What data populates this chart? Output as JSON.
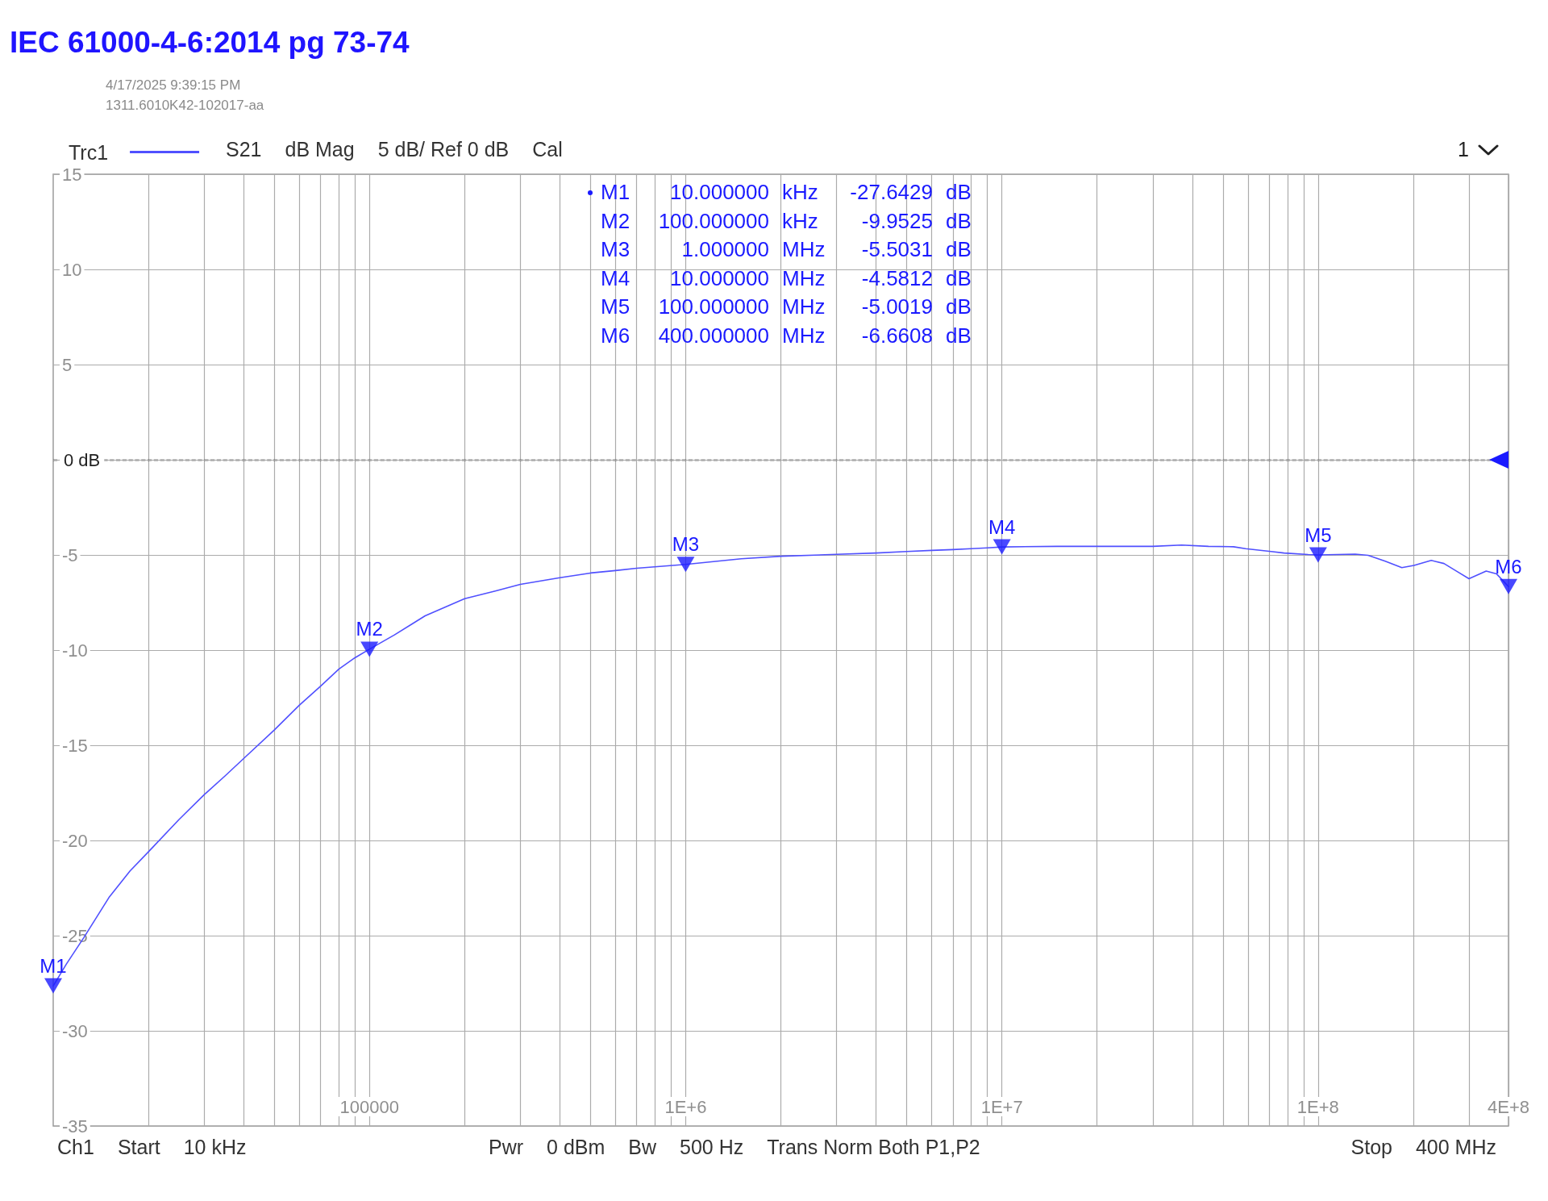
{
  "chart_data": {
    "type": "line",
    "title": "IEC 61000-4-6:2014 pg 73-74",
    "subtitle": "S21   dB Mag   5 dB/ Ref 0 dB   Cal",
    "x": [
      10000,
      11000,
      12500,
      15000,
      17500,
      20000,
      25000,
      30000,
      35000,
      40000,
      50000,
      60000,
      70000,
      80000,
      90000,
      100000,
      120000,
      150000,
      200000,
      250000,
      300000,
      400000,
      500000,
      600000,
      700000,
      1000000,
      1500000,
      2000000,
      3000000,
      4000000,
      5000000,
      6000000,
      7000000,
      8000000,
      9000000,
      10000000,
      15000000,
      20000000,
      30000000,
      37000000,
      45000000,
      54000000,
      59000000,
      71000000,
      78000000,
      93000000,
      100000000,
      131000000,
      144000000,
      163000000,
      184000000,
      201000000,
      228000000,
      250000000,
      274000000,
      300000000,
      340000000,
      367000000,
      400000000
    ],
    "series": [
      {
        "name": "Trc1",
        "color": "#5050ff",
        "values": [
          -27.64,
          -26.5,
          -25.1,
          -23,
          -21.6,
          -20.6,
          -18.9,
          -17.6,
          -16.6,
          -15.7,
          -14.2,
          -12.9,
          -11.9,
          -11,
          -10.4,
          -9.95,
          -9.2,
          -8.2,
          -7.3,
          -6.9,
          -6.55,
          -6.2,
          -5.95,
          -5.82,
          -5.7,
          -5.5,
          -5.2,
          -5.07,
          -4.97,
          -4.9,
          -4.82,
          -4.76,
          -4.72,
          -4.67,
          -4.63,
          -4.58,
          -4.55,
          -4.55,
          -4.55,
          -4.48,
          -4.55,
          -4.57,
          -4.67,
          -4.82,
          -4.9,
          -4.98,
          -5,
          -4.96,
          -5.02,
          -5.33,
          -5.67,
          -5.55,
          -5.29,
          -5.45,
          -5.85,
          -6.25,
          -5.85,
          -6,
          -6.66
        ]
      },
      {
        "type": "scatter",
        "color": "#1a1aff",
        "marker": "triangle",
        "x": [
          10000,
          100000,
          1000000,
          10000000,
          100000000,
          400000000
        ],
        "values": [
          -27.6429,
          -9.9525,
          -5.5031,
          -4.5812,
          -5.0019,
          -6.6608
        ]
      }
    ],
    "log": "x",
    "xlim": [
      10000,
      400000000
    ],
    "xticks": [
      {
        "value": 20000,
        "label": null
      },
      {
        "value": 30000,
        "label": null
      },
      {
        "value": 40000,
        "label": null
      },
      {
        "value": 50000,
        "label": null
      },
      {
        "value": 60000,
        "label": null
      },
      {
        "value": 70000,
        "label": null
      },
      {
        "value": 80000,
        "label": null
      },
      {
        "value": 90000,
        "label": null
      },
      100000,
      {
        "value": 200000,
        "label": null
      },
      {
        "value": 300000,
        "label": null
      },
      {
        "value": 400000,
        "label": null
      },
      {
        "value": 500000,
        "label": null
      },
      {
        "value": 600000,
        "label": null
      },
      {
        "value": 700000,
        "label": null
      },
      {
        "value": 800000,
        "label": null
      },
      {
        "value": 900000,
        "label": null
      },
      {
        "value": 1000000,
        "label": "1E+6"
      },
      {
        "value": 2000000,
        "label": null
      },
      {
        "value": 3000000,
        "label": null
      },
      {
        "value": 4000000,
        "label": null
      },
      {
        "value": 5000000,
        "label": null
      },
      {
        "value": 6000000,
        "label": null
      },
      {
        "value": 7000000,
        "label": null
      },
      {
        "value": 8000000,
        "label": null
      },
      {
        "value": 9000000,
        "label": null
      },
      {
        "value": 10000000,
        "label": "1E+7"
      },
      {
        "value": 20000000,
        "label": null
      },
      {
        "value": 30000000,
        "label": null
      },
      {
        "value": 40000000,
        "label": null
      },
      {
        "value": 50000000,
        "label": null
      },
      {
        "value": 60000000,
        "label": null
      },
      {
        "value": 70000000,
        "label": null
      },
      {
        "value": 80000000,
        "label": null
      },
      {
        "value": 90000000,
        "label": null
      },
      {
        "value": 100000000,
        "label": "1E+8"
      },
      {
        "value": 200000000,
        "label": null
      },
      {
        "value": 300000000,
        "label": null
      },
      {
        "value": 400000000,
        "label": "4E+8"
      }
    ],
    "ylim": [
      -35,
      15
    ],
    "yticks": [
      -35,
      -30,
      -25,
      -20,
      -15,
      -10,
      -5,
      {
        "value": 0,
        "label": "0 dB"
      },
      5,
      10,
      15
    ],
    "grid": true,
    "legend": "top left",
    "ref_lines": [
      {
        "axis": "y",
        "value": 0,
        "color": "#000000",
        "line_style": "dashed"
      }
    ],
    "annotations": [
      "4/17/2025 9:39:15 PM",
      "1311.6010K42-102017-aa",
      "1",
      "Ch1   Start   10 kHz",
      "Pwr   0 dBm   Bw   500 Hz   Trans Norm Both P1,P2",
      "Stop   400 MHz",
      "M1   10.000000   kHz   -27.6429   dB",
      "M2   100.000000   kHz   -9.9525   dB",
      "M3   1.000000   MHz   -5.5031   dB",
      "M4   10.000000   MHz   -4.5812   dB",
      "M5   100.000000   MHz   -5.0019   dB",
      "M6   400.000000   MHz   -6.6608   dB",
      {
        "text": "M1",
        "x": 10000,
        "y": -27.6429
      },
      {
        "text": "M2",
        "x": 100000,
        "y": -9.9525
      },
      {
        "text": "M3",
        "x": 1000000,
        "y": -5.5031
      },
      {
        "text": "M4",
        "x": 10000000,
        "y": -4.5812
      },
      {
        "text": "M5",
        "x": 100000000,
        "y": -5.0019
      },
      {
        "text": "M6",
        "x": 400000000,
        "y": -6.6608
      }
    ]
  }
}
